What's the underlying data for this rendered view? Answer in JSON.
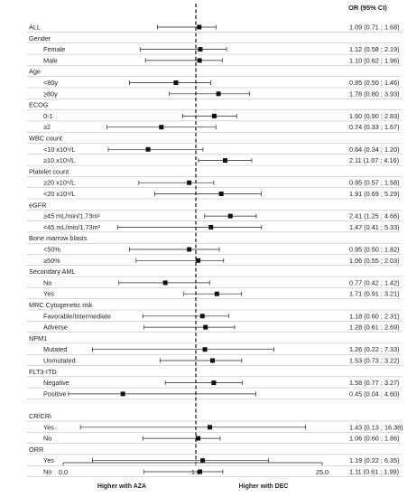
{
  "chart_data": {
    "type": "forest",
    "column_header": "OR (95% CI)",
    "x_ticks": [
      "0.0",
      "1.0",
      "25.0"
    ],
    "reference_value": 1.0,
    "x_notes": {
      "left": "Higher with AZA",
      "right": "Higher with DEC"
    },
    "rows": [
      {
        "label": "ALL",
        "kind": "item",
        "level": 0,
        "or": 1.09,
        "lo": 0.71,
        "hi": 1.68,
        "text": "1.09 (0.71 ; 1.68)"
      },
      {
        "label": "Gender",
        "kind": "header"
      },
      {
        "label": "Female",
        "kind": "item",
        "level": 1,
        "or": 1.12,
        "lo": 0.58,
        "hi": 2.19,
        "text": "1.12 (0.58 ; 2.19)"
      },
      {
        "label": "Male",
        "kind": "item",
        "level": 1,
        "or": 1.1,
        "lo": 0.62,
        "hi": 1.96,
        "text": "1.10 (0.62 ; 1.96)"
      },
      {
        "label": "Age",
        "kind": "header"
      },
      {
        "label": "<80y",
        "kind": "item",
        "level": 1,
        "or": 0.85,
        "lo": 0.5,
        "hi": 1.46,
        "text": "0.85 (0.50 ; 1.46)"
      },
      {
        "label": "≥80y",
        "kind": "item",
        "level": 1,
        "or": 1.78,
        "lo": 0.8,
        "hi": 3.93,
        "text": "1.78 (0.80 ; 3.93)"
      },
      {
        "label": "ECOG",
        "kind": "header"
      },
      {
        "label": "0-1",
        "kind": "item",
        "level": 1,
        "or": 1.6,
        "lo": 0.9,
        "hi": 2.83,
        "text": "1.60 (0.90 ; 2.83)"
      },
      {
        "label": "≥2",
        "kind": "item",
        "level": 1,
        "or": 0.74,
        "lo": 0.33,
        "hi": 1.67,
        "text": "0.74 (0.33 ; 1.67)"
      },
      {
        "label": "WBC count",
        "kind": "header"
      },
      {
        "label": "<10 x10⁹/L",
        "kind": "item",
        "level": 1,
        "or": 0.64,
        "lo": 0.34,
        "hi": 1.2,
        "text": "0.64 (0.34 ; 1.20)"
      },
      {
        "label": "≥10 x10⁹/L",
        "kind": "item",
        "level": 1,
        "or": 2.11,
        "lo": 1.07,
        "hi": 4.16,
        "text": "2.11 (1.07 ; 4.16)"
      },
      {
        "label": "Platelet count",
        "kind": "header"
      },
      {
        "label": "≥20 x10⁹/L",
        "kind": "item",
        "level": 1,
        "or": 0.95,
        "lo": 0.57,
        "hi": 1.58,
        "text": "0.95 (0.57 ; 1.58)"
      },
      {
        "label": "<20 x10⁹/L",
        "kind": "item",
        "level": 1,
        "or": 1.91,
        "lo": 0.69,
        "hi": 5.29,
        "text": "1.91 (0.69 ; 5.29)"
      },
      {
        "label": "eGFR",
        "kind": "header"
      },
      {
        "label": "≥45 mL/min/1.73m²",
        "kind": "item",
        "level": 1,
        "or": 2.41,
        "lo": 1.25,
        "hi": 4.66,
        "text": "2.41 (1.25 ; 4.66)"
      },
      {
        "label": "<45 mL/min/1.73m²",
        "kind": "item",
        "level": 1,
        "or": 1.47,
        "lo": 0.41,
        "hi": 5.33,
        "text": "1.47 (0.41 ; 5.33)"
      },
      {
        "label": "Bone marrow blasts",
        "kind": "header"
      },
      {
        "label": "<50%",
        "kind": "item",
        "level": 1,
        "or": 0.95,
        "lo": 0.5,
        "hi": 1.82,
        "text": "0.95 (0.50 ; 1.82)"
      },
      {
        "label": "≥50%",
        "kind": "item",
        "level": 1,
        "or": 1.06,
        "lo": 0.55,
        "hi": 2.03,
        "text": "1.06 (0.55 ; 2.03)"
      },
      {
        "label": "Secondary AML",
        "kind": "header"
      },
      {
        "label": "No",
        "kind": "item",
        "level": 1,
        "or": 0.77,
        "lo": 0.42,
        "hi": 1.42,
        "text": "0.77 (0.42 ; 1.42)"
      },
      {
        "label": "Yes",
        "kind": "item",
        "level": 1,
        "or": 1.71,
        "lo": 0.91,
        "hi": 3.21,
        "text": "1.71 (0.91 ; 3.21)"
      },
      {
        "label": "MRC Cytogenetic risk",
        "kind": "header"
      },
      {
        "label": "Favorable/Intermediate",
        "kind": "item",
        "level": 1,
        "or": 1.18,
        "lo": 0.6,
        "hi": 2.31,
        "text": "1.18 (0.60 ; 2.31)"
      },
      {
        "label": "Adverse",
        "kind": "item",
        "level": 1,
        "or": 1.28,
        "lo": 0.61,
        "hi": 2.69,
        "text": "1.28 (0.61 ; 2.69)"
      },
      {
        "label": "NPM1",
        "kind": "header"
      },
      {
        "label": "Mutated",
        "kind": "item",
        "level": 1,
        "or": 1.26,
        "lo": 0.22,
        "hi": 7.33,
        "text": "1.26 (0.22 ; 7.33)"
      },
      {
        "label": "Unmutated",
        "kind": "item",
        "level": 1,
        "or": 1.53,
        "lo": 0.73,
        "hi": 3.22,
        "text": "1.53 (0.73 ; 3.22)"
      },
      {
        "label": "FLT3-ITD",
        "kind": "header"
      },
      {
        "label": "Negative",
        "kind": "item",
        "level": 1,
        "or": 1.58,
        "lo": 0.77,
        "hi": 3.27,
        "text": "1.58 (0.77 ; 3.27)"
      },
      {
        "label": "Positive",
        "kind": "item",
        "level": 1,
        "or": 0.45,
        "lo": 0.04,
        "hi": 4.6,
        "text": "0.45 (0.04 ; 4.60)"
      },
      {
        "label": "",
        "kind": "spacer"
      },
      {
        "label": "CR/CRi",
        "kind": "header"
      },
      {
        "label": "Yes",
        "kind": "item",
        "level": 1,
        "or": 1.43,
        "lo": 0.13,
        "hi": 16.38,
        "text": "1.43 (0.13 ; 16.38)"
      },
      {
        "label": "No",
        "kind": "item",
        "level": 1,
        "or": 1.06,
        "lo": 0.6,
        "hi": 1.86,
        "text": "1.06 (0.60 ; 1.86)"
      },
      {
        "label": "ORR",
        "kind": "header"
      },
      {
        "label": "Yes",
        "kind": "item",
        "level": 1,
        "or": 1.19,
        "lo": 0.22,
        "hi": 6.35,
        "text": "1.19 (0.22 ; 6.35)"
      },
      {
        "label": "No",
        "kind": "item",
        "level": 1,
        "or": 1.11,
        "lo": 0.61,
        "hi": 1.99,
        "text": "1.11 (0.61 ; 1.99)"
      }
    ],
    "colors": {
      "ink": "#222222",
      "separator": "#aab4c8",
      "marker": "#111111"
    }
  }
}
